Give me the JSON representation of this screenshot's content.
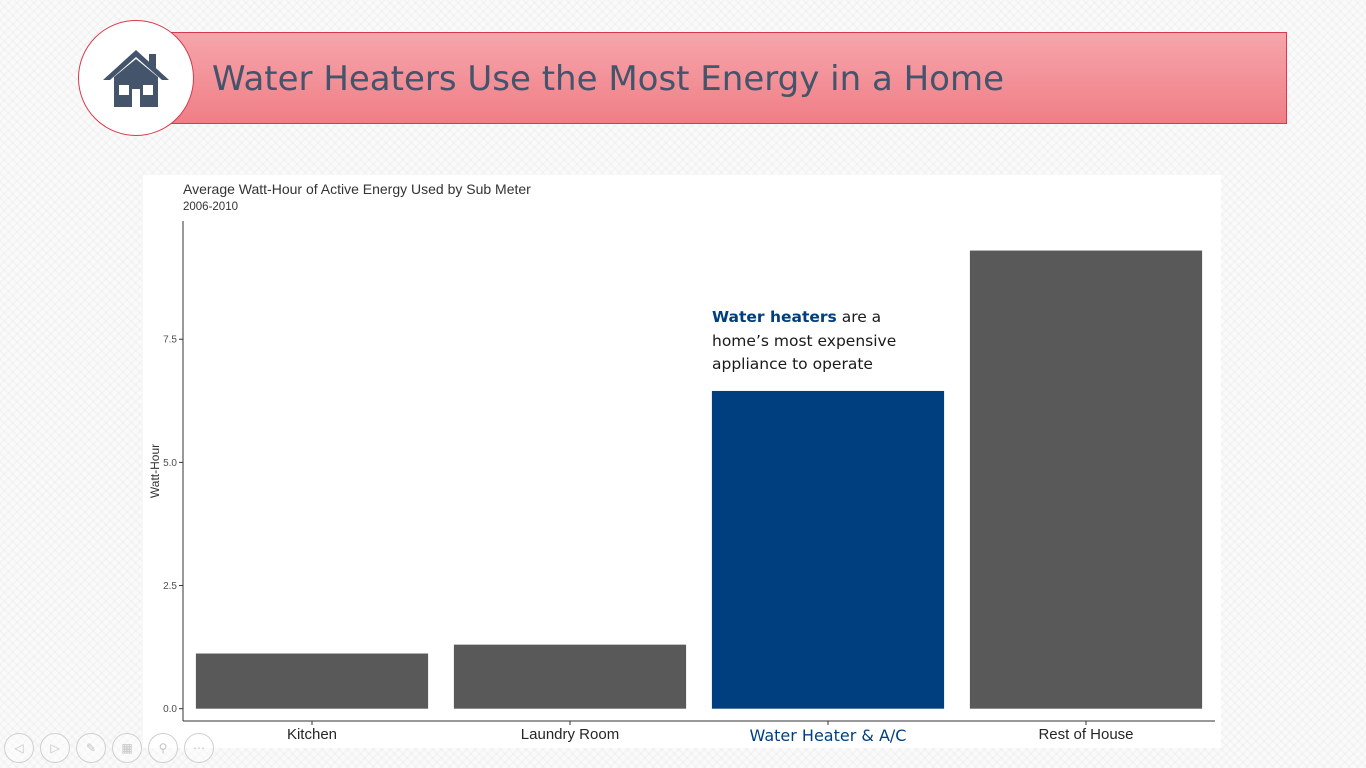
{
  "slide": {
    "title": "Water Heaters Use the Most Energy in a Home",
    "logo_icon": "house-icon"
  },
  "annotation": {
    "highlight": "Water heaters",
    "rest": " are a home’s most expensive appliance to operate"
  },
  "colors": {
    "banner_top": "#f6a5ab",
    "banner_bottom": "#f07e86",
    "banner_border": "#d63a4c",
    "title_text": "#44546a",
    "bar_default": "#595959",
    "bar_highlight": "#003f7f"
  },
  "chart_data": {
    "type": "bar",
    "title": "Average Watt-Hour of Active Energy Used by Sub Meter",
    "subtitle": "2006-2010",
    "xlabel": "",
    "ylabel": "Watt-Hour",
    "categories": [
      "Kitchen",
      "Laundry Room",
      "Water Heater & A/C",
      "Rest of House"
    ],
    "values": [
      1.12,
      1.3,
      6.45,
      9.3
    ],
    "highlight_index": 2,
    "ylim": [
      -0.25,
      9.9
    ],
    "yticks": [
      0.0,
      2.5,
      5.0,
      7.5
    ],
    "ytick_labels": [
      "0.0",
      "2.5",
      "5.0",
      "7.5"
    ],
    "grid": false,
    "legend": "none"
  },
  "player_controls": [
    {
      "name": "previous-slide-icon",
      "glyph": "◁"
    },
    {
      "name": "next-slide-icon",
      "glyph": "▷"
    },
    {
      "name": "pen-icon",
      "glyph": "✎"
    },
    {
      "name": "slides-grid-icon",
      "glyph": "▦"
    },
    {
      "name": "zoom-icon",
      "glyph": "⚲"
    },
    {
      "name": "more-options-icon",
      "glyph": "⋯"
    }
  ]
}
